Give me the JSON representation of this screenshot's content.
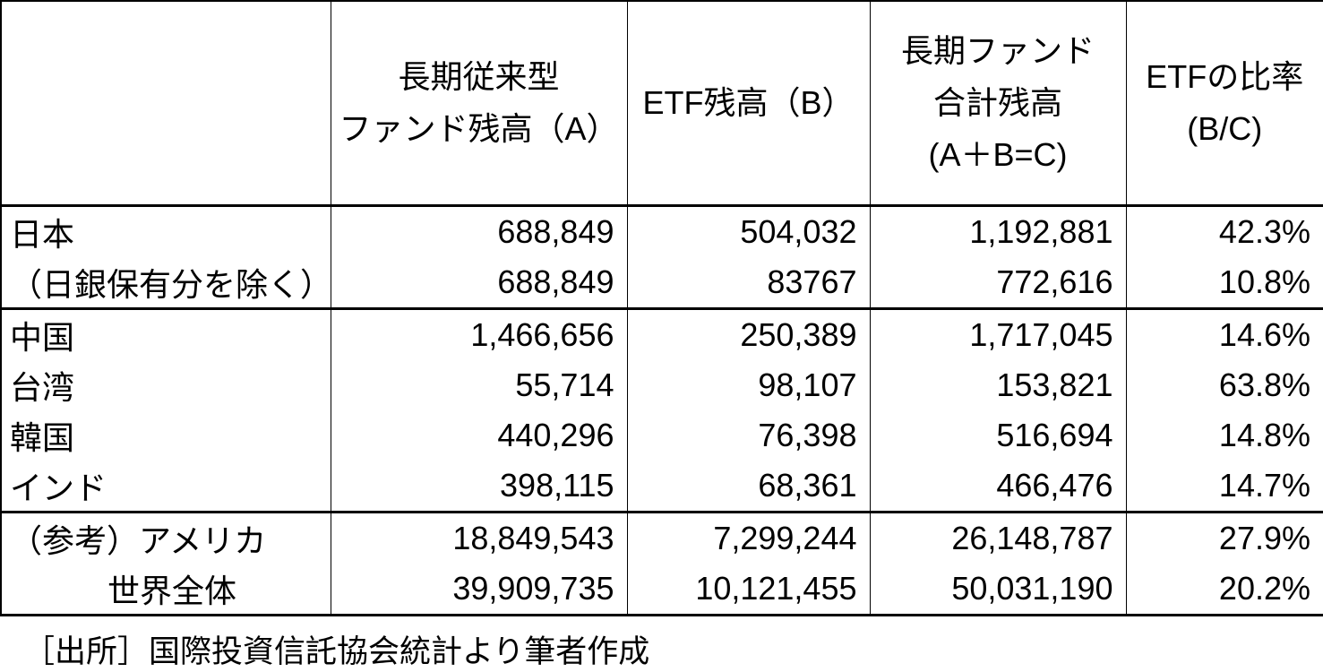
{
  "colors": {
    "background": "#ffffff",
    "text": "#000000",
    "border": "#000000"
  },
  "table": {
    "columns": [
      {
        "lines": [
          ""
        ]
      },
      {
        "lines": [
          "長期従来型",
          "ファンド残高（A）"
        ]
      },
      {
        "lines": [
          "ETF残高（B）"
        ]
      },
      {
        "lines": [
          "長期ファンド",
          "合計残高",
          "(A＋B=C)"
        ]
      },
      {
        "lines": [
          "ETFの比率",
          "(B/C)"
        ]
      }
    ],
    "rows": [
      {
        "label": "日本",
        "fund_a": "688,849",
        "etf_b": "504,032",
        "total_c": "1,192,881",
        "ratio": "42.3%"
      },
      {
        "label": "（日銀保有分を除く）",
        "fund_a": "688,849",
        "etf_b": "83767",
        "total_c": "772,616",
        "ratio": "10.8%"
      },
      {
        "label": "中国",
        "fund_a": "1,466,656",
        "etf_b": "250,389",
        "total_c": "1,717,045",
        "ratio": "14.6%"
      },
      {
        "label": "台湾",
        "fund_a": "55,714",
        "etf_b": "98,107",
        "total_c": "153,821",
        "ratio": "63.8%"
      },
      {
        "label": "韓国",
        "fund_a": "440,296",
        "etf_b": "76,398",
        "total_c": "516,694",
        "ratio": "14.8%"
      },
      {
        "label": "インド",
        "fund_a": "398,115",
        "etf_b": "68,361",
        "total_c": "466,476",
        "ratio": "14.7%"
      },
      {
        "label": "（参考）アメリカ",
        "fund_a": "18,849,543",
        "etf_b": "7,299,244",
        "total_c": "26,148,787",
        "ratio": "27.9%"
      },
      {
        "label": "世界全体",
        "fund_a": "39,909,735",
        "etf_b": "10,121,455",
        "total_c": "50,031,190",
        "ratio": "20.2%"
      }
    ],
    "source_note": "［出所］国際投資信託協会統計より筆者作成"
  }
}
